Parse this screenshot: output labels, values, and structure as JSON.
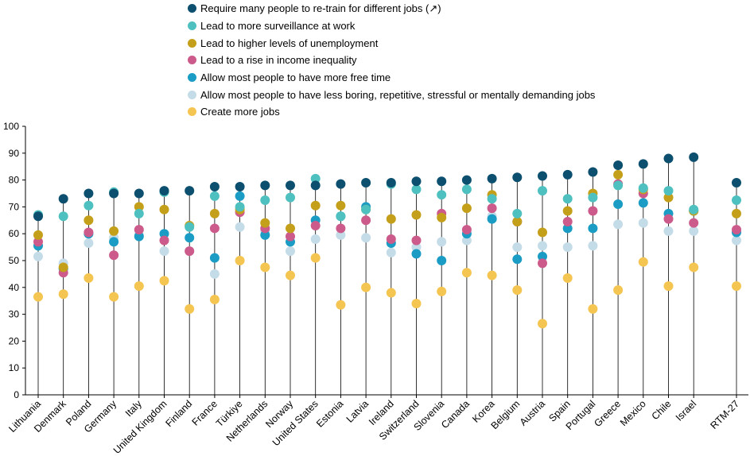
{
  "chart_data": {
    "type": "dot",
    "ylim": [
      0,
      100
    ],
    "yticks": [
      0,
      10,
      20,
      30,
      40,
      50,
      60,
      70,
      80,
      90,
      100
    ],
    "grid": false,
    "legend_position": "top",
    "categories": [
      "Lithuania",
      "Denmark",
      "Poland",
      "Germany",
      "Italy",
      "United Kingdom",
      "Finland",
      "France",
      "Türkiye",
      "Netherlands",
      "Norway",
      "United States",
      "Estonia",
      "Latvia",
      "Ireland",
      "Switzerland",
      "Slovenia",
      "Canada",
      "Korea",
      "Belgium",
      "Austria",
      "Spain",
      "Portugal",
      "Greece",
      "Mexico",
      "Chile",
      "Israel",
      "RTM-27"
    ],
    "series": [
      {
        "name": "Require many people to re-train for different jobs (↗)",
        "color": "#0d4f6e",
        "values": [
          66.5,
          73,
          75,
          75,
          75,
          76,
          76,
          77.5,
          77.5,
          78,
          78,
          78,
          78.5,
          79,
          79,
          79.5,
          79.5,
          80,
          80.5,
          81,
          81.5,
          82,
          83,
          85.5,
          86,
          88,
          88.5,
          79
        ]
      },
      {
        "name": "Lead to more surveillance at work",
        "color": "#4fc0c0",
        "values": [
          67,
          66.5,
          70.5,
          75.5,
          67.5,
          75.5,
          62.5,
          74,
          70,
          72.5,
          73.5,
          80.5,
          66.5,
          69,
          78.5,
          76.5,
          74.5,
          76.5,
          73,
          67.5,
          76,
          73,
          73.5,
          78,
          77,
          76,
          69,
          72.5
        ]
      },
      {
        "name": "Lead to higher levels of unemployment",
        "color": "#c4a01a",
        "values": [
          59.5,
          47.5,
          65,
          61,
          70,
          69,
          63,
          67.5,
          69,
          64,
          62,
          70.5,
          70.5,
          69,
          65.5,
          67,
          66,
          69.5,
          74.5,
          64.5,
          60.5,
          68.5,
          75,
          82,
          76.5,
          73.5,
          68.5,
          67.5
        ]
      },
      {
        "name": "Lead to a rise in income inequality",
        "color": "#cc5a8a",
        "values": [
          57,
          45.5,
          60.5,
          52,
          61.5,
          57.5,
          53.5,
          62,
          68,
          62,
          59,
          63,
          62,
          65,
          58,
          57.5,
          67.5,
          61.5,
          69.5,
          64.5,
          49,
          64.5,
          68.5,
          78.5,
          75,
          65.5,
          64,
          61.5
        ]
      },
      {
        "name": "Allow most people to have more free time",
        "color": "#1a9cc4",
        "values": [
          55.5,
          47,
          60,
          57,
          59,
          60,
          58.5,
          51,
          74,
          59.5,
          57,
          65,
          66.5,
          70,
          56.5,
          52.5,
          50,
          60,
          65.5,
          50.5,
          51.5,
          62,
          62,
          71,
          71.5,
          67.5,
          68.5,
          60.5
        ]
      },
      {
        "name": "Allow most people to have less boring, repetitive, stressful or mentally demanding jobs",
        "color": "#c4dce8",
        "values": [
          51.5,
          49,
          56.5,
          58.5,
          59.5,
          53.5,
          53.5,
          45,
          62.5,
          61,
          53.5,
          58,
          59.5,
          58.5,
          53,
          55,
          57,
          57.5,
          66.5,
          55,
          55.5,
          55,
          55.5,
          63.5,
          64,
          61,
          61,
          57.5
        ]
      },
      {
        "name": "Create more jobs",
        "color": "#f5c552",
        "values": [
          36.5,
          37.5,
          43.5,
          36.5,
          40.5,
          42.5,
          32,
          35.5,
          50,
          47.5,
          44.5,
          51,
          33.5,
          40,
          38,
          34,
          38.5,
          45.5,
          44.5,
          39,
          26.5,
          43.5,
          32,
          39,
          49.5,
          40.5,
          47.5,
          40.5
        ]
      }
    ]
  }
}
